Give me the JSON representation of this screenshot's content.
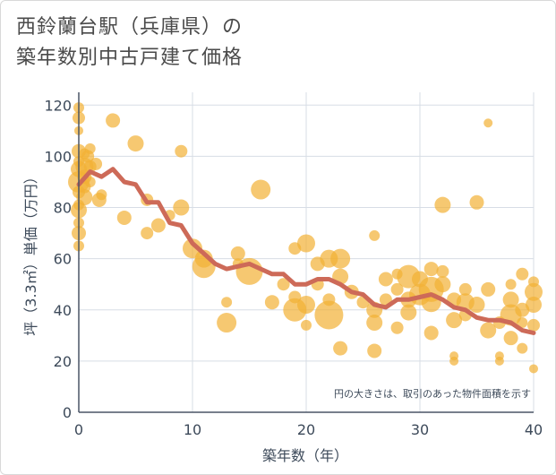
{
  "title_lines": [
    "西鈴蘭台駅（兵庫県）の",
    "築年数別中古戸建て価格"
  ],
  "chart_data": {
    "type": "scatter",
    "xlabel": "築年数（年）",
    "ylabel": "坪（3.3㎡）単価（万円）",
    "xlim": [
      0,
      40
    ],
    "ylim": [
      0,
      125
    ],
    "xticks": [
      0,
      10,
      20,
      30,
      40
    ],
    "yticks": [
      0,
      20,
      40,
      60,
      80,
      100,
      120
    ],
    "grid": true,
    "annotation": "円の大きさは、取引のあった物件面積を示す",
    "colors": {
      "bubble": "#f2b134",
      "line": "#cd6a58",
      "grid": "#d7dde5",
      "axis": "#4a5566"
    },
    "line_series": {
      "x": [
        0,
        1,
        2,
        3,
        4,
        5,
        6,
        7,
        8,
        9,
        10,
        11,
        12,
        13,
        14,
        15,
        16,
        17,
        18,
        19,
        20,
        21,
        22,
        23,
        24,
        25,
        26,
        27,
        28,
        29,
        30,
        31,
        32,
        33,
        34,
        35,
        36,
        37,
        38,
        39,
        40
      ],
      "y": [
        89,
        94,
        92,
        95,
        90,
        89,
        82,
        82,
        74,
        73,
        66,
        62,
        58,
        56,
        57,
        58,
        56,
        54,
        54,
        50,
        50,
        52,
        52,
        50,
        47,
        46,
        42,
        41,
        44,
        44,
        45,
        46,
        44,
        41,
        40,
        37,
        36,
        36,
        35,
        32,
        31
      ]
    },
    "points": [
      {
        "x": 0,
        "y": 119,
        "s": 6
      },
      {
        "x": 0,
        "y": 115,
        "s": 7
      },
      {
        "x": 0,
        "y": 110,
        "s": 5
      },
      {
        "x": 0,
        "y": 102,
        "s": 8
      },
      {
        "x": 0,
        "y": 98,
        "s": 6
      },
      {
        "x": 0,
        "y": 95,
        "s": 9
      },
      {
        "x": 0,
        "y": 90,
        "s": 12
      },
      {
        "x": 0,
        "y": 86,
        "s": 7
      },
      {
        "x": 0,
        "y": 81,
        "s": 6
      },
      {
        "x": 0,
        "y": 79,
        "s": 9
      },
      {
        "x": 0,
        "y": 74,
        "s": 6
      },
      {
        "x": 0,
        "y": 70,
        "s": 8
      },
      {
        "x": 0,
        "y": 65,
        "s": 6
      },
      {
        "x": 0.5,
        "y": 101,
        "s": 6
      },
      {
        "x": 0.5,
        "y": 96,
        "s": 10
      },
      {
        "x": 0.5,
        "y": 92,
        "s": 8
      },
      {
        "x": 0.5,
        "y": 88,
        "s": 7
      },
      {
        "x": 0.5,
        "y": 84,
        "s": 9
      },
      {
        "x": 0.8,
        "y": 100,
        "s": 7
      },
      {
        "x": 1,
        "y": 103,
        "s": 6
      },
      {
        "x": 1,
        "y": 96,
        "s": 7
      },
      {
        "x": 1,
        "y": 90,
        "s": 6
      },
      {
        "x": 1.5,
        "y": 97,
        "s": 7
      },
      {
        "x": 1.8,
        "y": 83,
        "s": 8
      },
      {
        "x": 2,
        "y": 85,
        "s": 6
      },
      {
        "x": 3,
        "y": 114,
        "s": 8
      },
      {
        "x": 4,
        "y": 76,
        "s": 8
      },
      {
        "x": 5,
        "y": 105,
        "s": 9
      },
      {
        "x": 6,
        "y": 83,
        "s": 7
      },
      {
        "x": 6,
        "y": 70,
        "s": 7
      },
      {
        "x": 7,
        "y": 73,
        "s": 8
      },
      {
        "x": 8,
        "y": 77,
        "s": 6
      },
      {
        "x": 9,
        "y": 102,
        "s": 7
      },
      {
        "x": 9,
        "y": 80,
        "s": 9
      },
      {
        "x": 10,
        "y": 64,
        "s": 11
      },
      {
        "x": 11,
        "y": 60,
        "s": 10
      },
      {
        "x": 11,
        "y": 57,
        "s": 13
      },
      {
        "x": 13,
        "y": 35,
        "s": 11
      },
      {
        "x": 13,
        "y": 43,
        "s": 6
      },
      {
        "x": 14,
        "y": 62,
        "s": 8
      },
      {
        "x": 14,
        "y": 58,
        "s": 6
      },
      {
        "x": 15,
        "y": 55,
        "s": 15
      },
      {
        "x": 16,
        "y": 87,
        "s": 11
      },
      {
        "x": 17,
        "y": 43,
        "s": 8
      },
      {
        "x": 18,
        "y": 50,
        "s": 7
      },
      {
        "x": 19,
        "y": 64,
        "s": 7
      },
      {
        "x": 19,
        "y": 45,
        "s": 7
      },
      {
        "x": 19,
        "y": 40,
        "s": 13
      },
      {
        "x": 20,
        "y": 66,
        "s": 10
      },
      {
        "x": 20,
        "y": 42,
        "s": 10
      },
      {
        "x": 20,
        "y": 34,
        "s": 6
      },
      {
        "x": 21,
        "y": 58,
        "s": 8
      },
      {
        "x": 21,
        "y": 50,
        "s": 7
      },
      {
        "x": 22,
        "y": 60,
        "s": 10
      },
      {
        "x": 22,
        "y": 38,
        "s": 16
      },
      {
        "x": 22,
        "y": 44,
        "s": 7
      },
      {
        "x": 23,
        "y": 60,
        "s": 11
      },
      {
        "x": 23,
        "y": 53,
        "s": 9
      },
      {
        "x": 23,
        "y": 25,
        "s": 8
      },
      {
        "x": 24,
        "y": 47,
        "s": 8
      },
      {
        "x": 25,
        "y": 43,
        "s": 7
      },
      {
        "x": 26,
        "y": 69,
        "s": 6
      },
      {
        "x": 26,
        "y": 40,
        "s": 9
      },
      {
        "x": 26,
        "y": 35,
        "s": 9
      },
      {
        "x": 26,
        "y": 24,
        "s": 8
      },
      {
        "x": 27,
        "y": 52,
        "s": 8
      },
      {
        "x": 27,
        "y": 44,
        "s": 7
      },
      {
        "x": 28,
        "y": 33,
        "s": 7
      },
      {
        "x": 28,
        "y": 48,
        "s": 7
      },
      {
        "x": 28,
        "y": 54,
        "s": 6
      },
      {
        "x": 29,
        "y": 53,
        "s": 13
      },
      {
        "x": 29,
        "y": 39,
        "s": 9
      },
      {
        "x": 29,
        "y": 44,
        "s": 9
      },
      {
        "x": 30,
        "y": 52,
        "s": 9
      },
      {
        "x": 30,
        "y": 46,
        "s": 12
      },
      {
        "x": 31,
        "y": 56,
        "s": 8
      },
      {
        "x": 31,
        "y": 48,
        "s": 14
      },
      {
        "x": 31,
        "y": 43,
        "s": 11
      },
      {
        "x": 31,
        "y": 31,
        "s": 8
      },
      {
        "x": 32,
        "y": 81,
        "s": 9
      },
      {
        "x": 32,
        "y": 55,
        "s": 7
      },
      {
        "x": 32,
        "y": 50,
        "s": 9
      },
      {
        "x": 33,
        "y": 44,
        "s": 8
      },
      {
        "x": 33,
        "y": 36,
        "s": 9
      },
      {
        "x": 33,
        "y": 22,
        "s": 5
      },
      {
        "x": 33,
        "y": 20,
        "s": 5
      },
      {
        "x": 34,
        "y": 48,
        "s": 7
      },
      {
        "x": 34,
        "y": 43,
        "s": 10
      },
      {
        "x": 34,
        "y": 38,
        "s": 7
      },
      {
        "x": 35,
        "y": 82,
        "s": 8
      },
      {
        "x": 35,
        "y": 42,
        "s": 9
      },
      {
        "x": 36,
        "y": 113,
        "s": 5
      },
      {
        "x": 36,
        "y": 48,
        "s": 8
      },
      {
        "x": 36,
        "y": 32,
        "s": 9
      },
      {
        "x": 37,
        "y": 22,
        "s": 5
      },
      {
        "x": 37,
        "y": 20,
        "s": 5
      },
      {
        "x": 37,
        "y": 35,
        "s": 7
      },
      {
        "x": 38,
        "y": 50,
        "s": 6
      },
      {
        "x": 38,
        "y": 44,
        "s": 9
      },
      {
        "x": 38,
        "y": 38,
        "s": 12
      },
      {
        "x": 38,
        "y": 29,
        "s": 8
      },
      {
        "x": 39,
        "y": 54,
        "s": 7
      },
      {
        "x": 39,
        "y": 40,
        "s": 8
      },
      {
        "x": 39,
        "y": 35,
        "s": 6
      },
      {
        "x": 39,
        "y": 25,
        "s": 6
      },
      {
        "x": 40,
        "y": 51,
        "s": 6
      },
      {
        "x": 40,
        "y": 47,
        "s": 10
      },
      {
        "x": 40,
        "y": 42,
        "s": 9
      },
      {
        "x": 40,
        "y": 34,
        "s": 7
      },
      {
        "x": 40,
        "y": 17,
        "s": 5
      }
    ]
  }
}
